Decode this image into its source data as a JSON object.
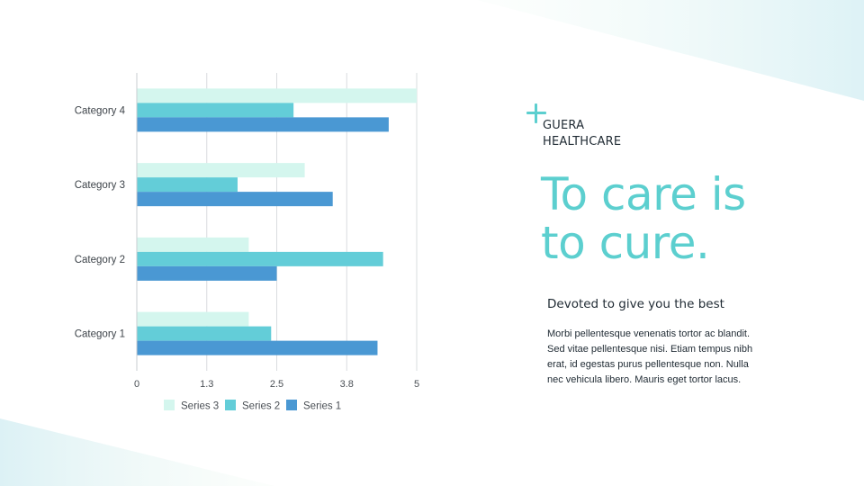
{
  "brand": {
    "line1": "GUERA",
    "line2": "HEALTHCARE"
  },
  "headline": {
    "line1": "To care is",
    "line2": "to cure."
  },
  "subtitle": "Devoted to give you the best",
  "body_lines": [
    "Morbi pellentesque venenatis tortor ac blandit.",
    "Sed vitae pellentesque nisi. Etiam tempus nibh",
    "erat, id egestas purus pellentesque non. Nulla",
    "nec vehicula libero. Mauris eget tortor lacus."
  ],
  "icons": {
    "brand_mark": "plus-icon"
  },
  "colors": {
    "accent": "#5ccfcf",
    "series1": "#4a98d3",
    "series2": "#63cdd8",
    "series3": "#d4f6ee"
  },
  "chart_data": {
    "type": "bar",
    "orientation": "horizontal",
    "categories": [
      "Category 1",
      "Category 2",
      "Category 3",
      "Category 4"
    ],
    "series": [
      {
        "name": "Series 1",
        "values": [
          4.3,
          2.5,
          3.5,
          4.5
        ]
      },
      {
        "name": "Series 2",
        "values": [
          2.4,
          4.4,
          1.8,
          2.8
        ]
      },
      {
        "name": "Series 3",
        "values": [
          2.0,
          2.0,
          3.0,
          5.0
        ]
      }
    ],
    "xticks": [
      "0",
      "1.3",
      "2.5",
      "3.8",
      "5"
    ],
    "xlim": [
      0,
      5
    ],
    "grid": "vertical",
    "legend": "bottom",
    "legend_order": [
      "Series 3",
      "Series 2",
      "Series 1"
    ]
  }
}
